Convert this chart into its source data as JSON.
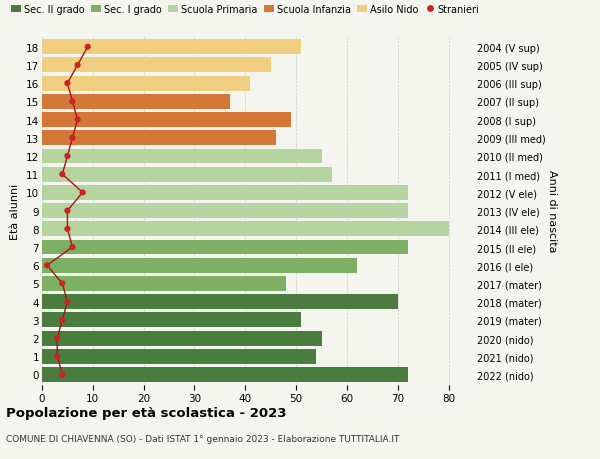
{
  "ages": [
    18,
    17,
    16,
    15,
    14,
    13,
    12,
    11,
    10,
    9,
    8,
    7,
    6,
    5,
    4,
    3,
    2,
    1,
    0
  ],
  "years": [
    "2004 (V sup)",
    "2005 (IV sup)",
    "2006 (III sup)",
    "2007 (II sup)",
    "2008 (I sup)",
    "2009 (III med)",
    "2010 (II med)",
    "2011 (I med)",
    "2012 (V ele)",
    "2013 (IV ele)",
    "2014 (III ele)",
    "2015 (II ele)",
    "2016 (I ele)",
    "2017 (mater)",
    "2018 (mater)",
    "2019 (mater)",
    "2020 (nido)",
    "2021 (nido)",
    "2022 (nido)"
  ],
  "bar_values": [
    72,
    54,
    55,
    51,
    70,
    48,
    62,
    72,
    80,
    72,
    72,
    57,
    55,
    46,
    49,
    37,
    41,
    45,
    51
  ],
  "bar_colors": [
    "#4a7c40",
    "#4a7c40",
    "#4a7c40",
    "#4a7c40",
    "#4a7c40",
    "#7db065",
    "#7db065",
    "#7db065",
    "#b5d4a0",
    "#b5d4a0",
    "#b5d4a0",
    "#b5d4a0",
    "#b5d4a0",
    "#d4783a",
    "#d4783a",
    "#d4783a",
    "#f0d080",
    "#f0d080",
    "#f0d080"
  ],
  "stranieri_values": [
    4,
    3,
    3,
    4,
    5,
    4,
    1,
    6,
    5,
    5,
    8,
    4,
    5,
    6,
    7,
    6,
    5,
    7,
    9
  ],
  "legend_labels": [
    "Sec. II grado",
    "Sec. I grado",
    "Scuola Primaria",
    "Scuola Infanzia",
    "Asilo Nido",
    "Stranieri"
  ],
  "legend_colors": [
    "#4a7c40",
    "#7db065",
    "#b5d4a0",
    "#d4783a",
    "#f0d080",
    "#cc2222"
  ],
  "title": "Popolazione per età scolastica - 2023",
  "subtitle": "COMUNE DI CHIAVENNA (SO) - Dati ISTAT 1° gennaio 2023 - Elaborazione TUTTITALIA.IT",
  "xlabel_right": "Anni di nascita",
  "ylabel": "Età alunni",
  "xlim": [
    0,
    85
  ],
  "bg_color": "#f5f5f0"
}
